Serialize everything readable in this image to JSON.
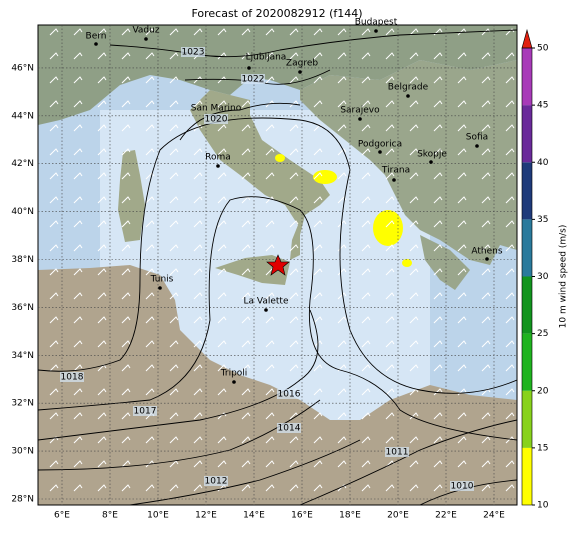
{
  "title": "Forecast of 2020082912 (f144)",
  "longitude_labels": [
    "6°E",
    "8°E",
    "10°E",
    "12°E",
    "14°E",
    "16°E",
    "18°E",
    "20°E",
    "22°E",
    "24°E"
  ],
  "latitude_labels": [
    "28°N",
    "30°N",
    "32°N",
    "34°N",
    "36°N",
    "38°N",
    "40°N",
    "42°N",
    "44°N",
    "46°N"
  ],
  "cities": [
    "Bern",
    "Vaduz",
    "Budapest",
    "Ljubljana",
    "Zagreb",
    "Belgrade",
    "San Marino",
    "Sarajevo",
    "Roma",
    "Podgorica",
    "Sofia",
    "Skopje",
    "Tirana",
    "Athens",
    "Tunis",
    "La Valette",
    "Tripoli"
  ],
  "isobar_labels": [
    "1023",
    "1022",
    "1020",
    "1018",
    "1017",
    "1016",
    "1014",
    "1012",
    "1011",
    "1010"
  ],
  "colorbar": {
    "label": "10 m wind speed (m/s)",
    "ticks": [
      10,
      15,
      20,
      25,
      30,
      35,
      40,
      45,
      50
    ],
    "colors": [
      "#ffff00",
      "#88d21c",
      "#1fb31f",
      "#12941e",
      "#2a7a9c",
      "#1e3a7a",
      "#6a2a9a",
      "#a83ab8"
    ],
    "extend_color": "#e02010"
  }
}
